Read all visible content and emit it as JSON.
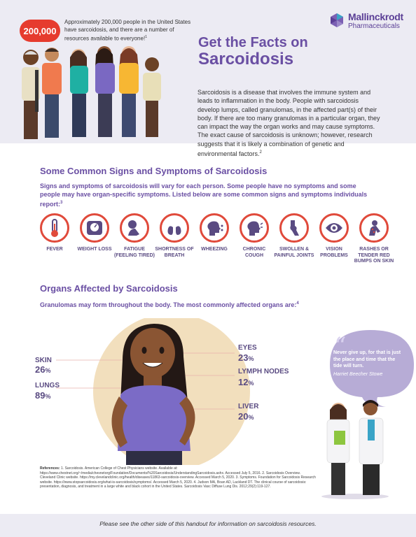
{
  "header": {
    "badge": "200,000",
    "badge_text": "Approximately 200,000 people in the United States have sarcoidosis, and there are a number of resources available to everyone!",
    "badge_sup": "1",
    "logo_name": "Mallinckrodt",
    "logo_sub": "Pharmaceuticals",
    "title_line1": "Get the Facts on",
    "title_line2": "Sarcoidosis"
  },
  "intro": {
    "text": "Sarcoidosis is a disease that involves the immune system and leads to inflammation in the body. People with sarcoidosis develop lumps, called granulomas, in the affected part(s) of their body. If there are too many granulomas in a particular organ, they can impact the way the organ works and may cause symptoms. The exact cause of sarcoidosis is unknown; however, research suggests that it is likely a combination of genetic and environmental factors.",
    "sup": "2"
  },
  "symptoms": {
    "heading": "Some Common Signs and Symptoms of Sarcoidosis",
    "subtext": "Signs and symptoms of sarcoidosis will vary for each person. Some people have no symptoms and some people may have organ-specific symptoms. Listed below are some common signs and symptoms individuals report:",
    "sup": "3",
    "items": [
      {
        "label": "FEVER",
        "icon": "thermometer-icon"
      },
      {
        "label": "WEIGHT LOSS",
        "icon": "scale-icon"
      },
      {
        "label": "FATIGUE (FEELING TIRED)",
        "icon": "tired-person-icon"
      },
      {
        "label": "SHORTNESS OF BREATH",
        "icon": "lungs-icon"
      },
      {
        "label": "WHEEZING",
        "icon": "wheezing-head-icon"
      },
      {
        "label": "CHRONIC COUGH",
        "icon": "cough-head-icon"
      },
      {
        "label": "SWOLLEN & PAINFUL JOINTS",
        "icon": "knee-joint-icon"
      },
      {
        "label": "VISION PROBLEMS",
        "icon": "eye-icon"
      },
      {
        "label": "RASHES OR TENDER RED BUMPS ON SKIN",
        "icon": "skin-rash-icon"
      }
    ]
  },
  "organs": {
    "heading": "Organs Affected by Sarcoidosis",
    "subtext": "Granulomas may form throughout the body.  The most commonly affected organs are:",
    "sup": "4",
    "skin": {
      "label": "SKIN",
      "value": "26",
      "unit": "%"
    },
    "lungs": {
      "label": "LUNGS",
      "value": "89",
      "unit": "%"
    },
    "eyes": {
      "label": "EYES",
      "value": "23",
      "unit": "%"
    },
    "lymph": {
      "label": "LYMPH NODES",
      "value": "12",
      "unit": "%"
    },
    "liver": {
      "label": "LIVER",
      "value": "20",
      "unit": "%"
    }
  },
  "quote": {
    "text": "Never give up, for that is just the place and time that the tide will turn.",
    "author": "Harriet Beecher Stowe"
  },
  "references": {
    "label": "References:",
    "text": " 1. Sarcoidosis. American College of Chest Physicians website. Available at: https://www.chestnet.org/~/media/chesnetorg/Foundation/Documents/%20Sarcoidosis/UnderstandingSarcoidosis.ashx. Accessed July 5, 2016. 2. Sarcoidosis Overview. Cleveland Clinic website. https://my.clevelandclinic.org/health/diseases/11863-sarcoidosis-overview. Accessed March 5, 2020. 3. Symptoms. Foundation for Sarcoidosis Research website. https://www.stopsarcoidosis.org/what-is-sarcoidosis/symptoms/. Accessed March 5, 2020. 4. Judson MA, Boan AD, Lackland DT. The clinical course of sarcoidosis: presentation, diagnosis, and treatment in a large white and black cohort in the United States. Sarcoidosis Vasc Diffuse Lung Dis. 2012;29(2):119-127."
  },
  "footer": {
    "text": "Please see the other side of this handout for information on sarcoidosis resources."
  },
  "colors": {
    "accent_purple": "#6a4fa3",
    "accent_red": "#e04a3b",
    "band_lavender": "#ecebf3",
    "quote_bubble": "#b7acd6"
  }
}
